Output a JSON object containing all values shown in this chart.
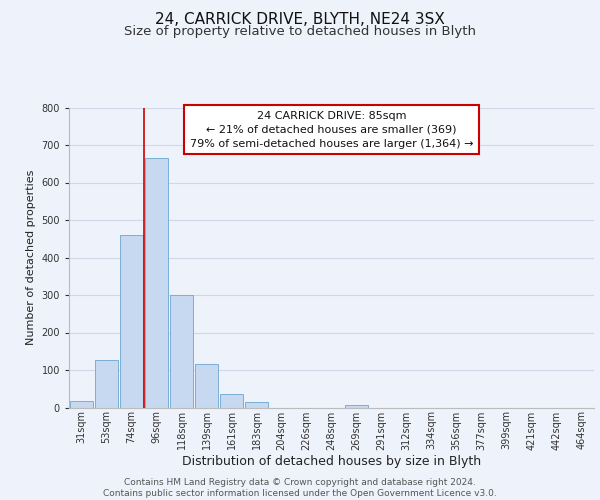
{
  "title_line1": "24, CARRICK DRIVE, BLYTH, NE24 3SX",
  "title_line2": "Size of property relative to detached houses in Blyth",
  "xlabel": "Distribution of detached houses by size in Blyth",
  "ylabel": "Number of detached properties",
  "bar_labels": [
    "31sqm",
    "53sqm",
    "74sqm",
    "96sqm",
    "118sqm",
    "139sqm",
    "161sqm",
    "183sqm",
    "204sqm",
    "226sqm",
    "248sqm",
    "269sqm",
    "291sqm",
    "312sqm",
    "334sqm",
    "356sqm",
    "377sqm",
    "399sqm",
    "421sqm",
    "442sqm",
    "464sqm"
  ],
  "bar_values": [
    18,
    127,
    460,
    665,
    300,
    117,
    35,
    14,
    0,
    0,
    0,
    8,
    0,
    0,
    0,
    0,
    0,
    0,
    0,
    0,
    0
  ],
  "bar_color": "#c6d9f0",
  "bar_edge_color": "#7bafd4",
  "reference_line_color": "#cc0000",
  "annotation_line1": "24 CARRICK DRIVE: 85sqm",
  "annotation_line2": "← 21% of detached houses are smaller (369)",
  "annotation_line3": "79% of semi-detached houses are larger (1,364) →",
  "annotation_box_color": "#ffffff",
  "annotation_box_edge_color": "#cc0000",
  "ylim": [
    0,
    800
  ],
  "yticks": [
    0,
    100,
    200,
    300,
    400,
    500,
    600,
    700,
    800
  ],
  "grid_color": "#d0d8e8",
  "background_color": "#eef2fa",
  "plot_bg_color": "#eef2fa",
  "footer_text": "Contains HM Land Registry data © Crown copyright and database right 2024.\nContains public sector information licensed under the Open Government Licence v3.0.",
  "title_fontsize": 11,
  "subtitle_fontsize": 9.5,
  "xlabel_fontsize": 9,
  "ylabel_fontsize": 8,
  "tick_fontsize": 7,
  "annotation_fontsize": 8,
  "footer_fontsize": 6.5
}
